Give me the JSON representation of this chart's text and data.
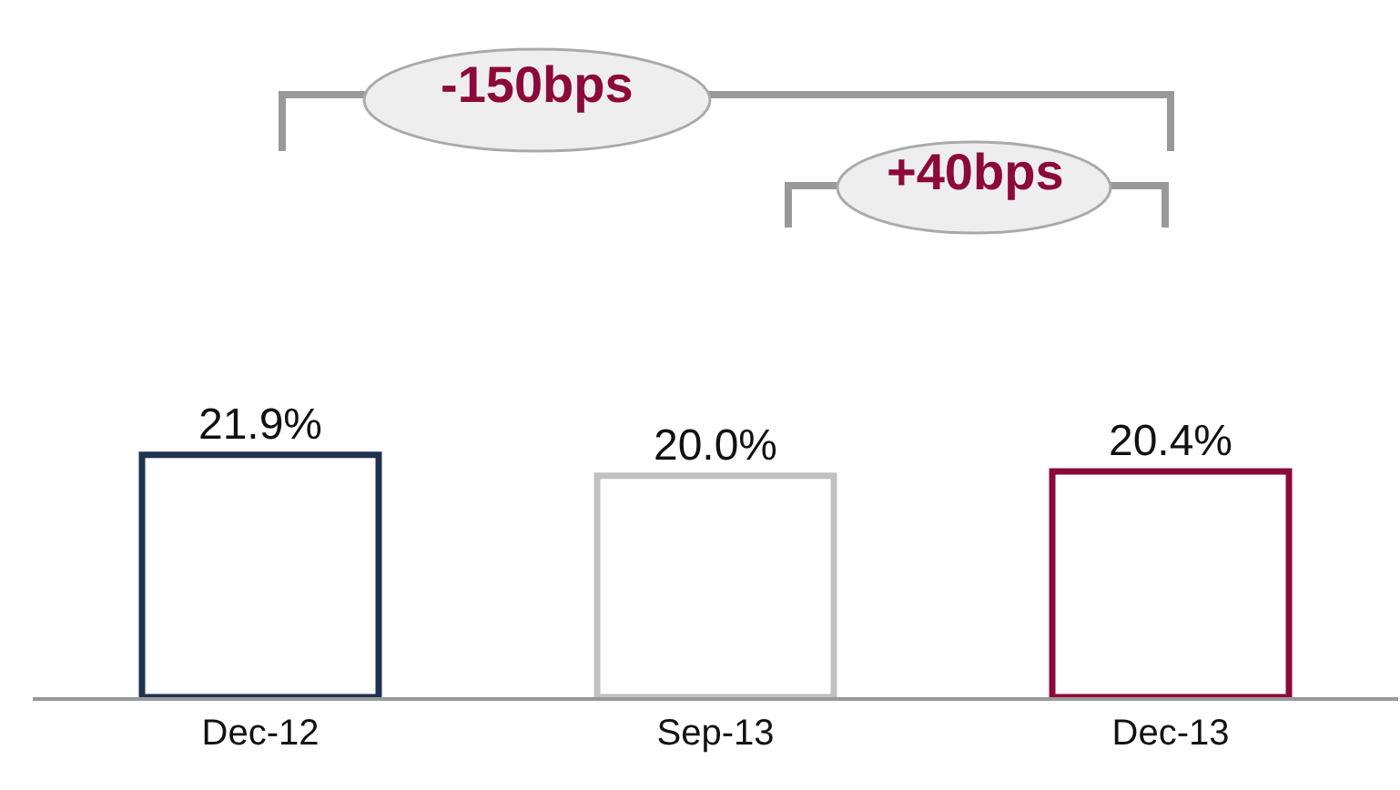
{
  "chart_data": {
    "type": "bar",
    "categories": [
      "Dec-12",
      "Sep-13",
      "Dec-13"
    ],
    "values": [
      21.9,
      20.0,
      20.4
    ],
    "value_labels": [
      "21.9%",
      "20.0%",
      "20.4%"
    ],
    "colors": [
      "#1f3350",
      "#c0c0c0",
      "#8b0a3a"
    ],
    "ylim": [
      0,
      63
    ],
    "tick_labels": "x",
    "legend": false,
    "annotations": [
      "-150bps",
      "+40bps"
    ]
  }
}
